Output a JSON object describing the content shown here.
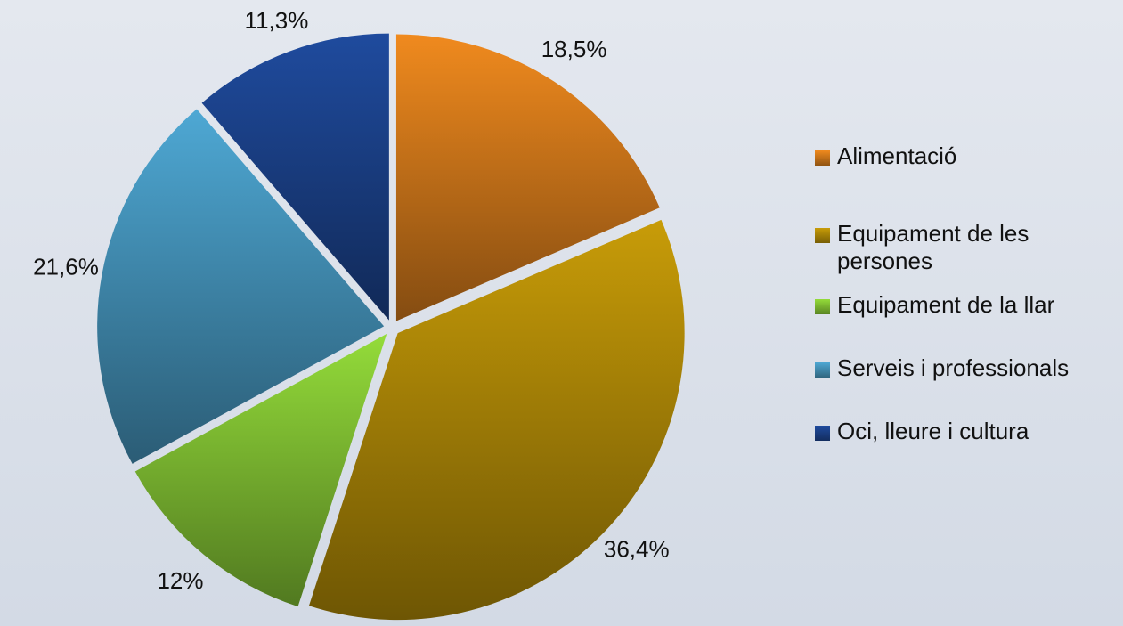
{
  "chart_data": {
    "type": "pie",
    "categories": [
      "Alimentació",
      "Equipament de les persones",
      "Equipament de la llar",
      "Serveis i professionals",
      "Oci, lleure i cultura"
    ],
    "values": [
      18.5,
      36.4,
      12,
      21.6,
      11.3
    ],
    "value_labels": [
      "18,5%",
      "36,4%",
      "12%",
      "21,6%",
      "11,3%"
    ],
    "colors": [
      "#f08a1e",
      "#c89c08",
      "#94dc3a",
      "#4ea8d4",
      "#1f4b9e"
    ],
    "legend": "right"
  }
}
